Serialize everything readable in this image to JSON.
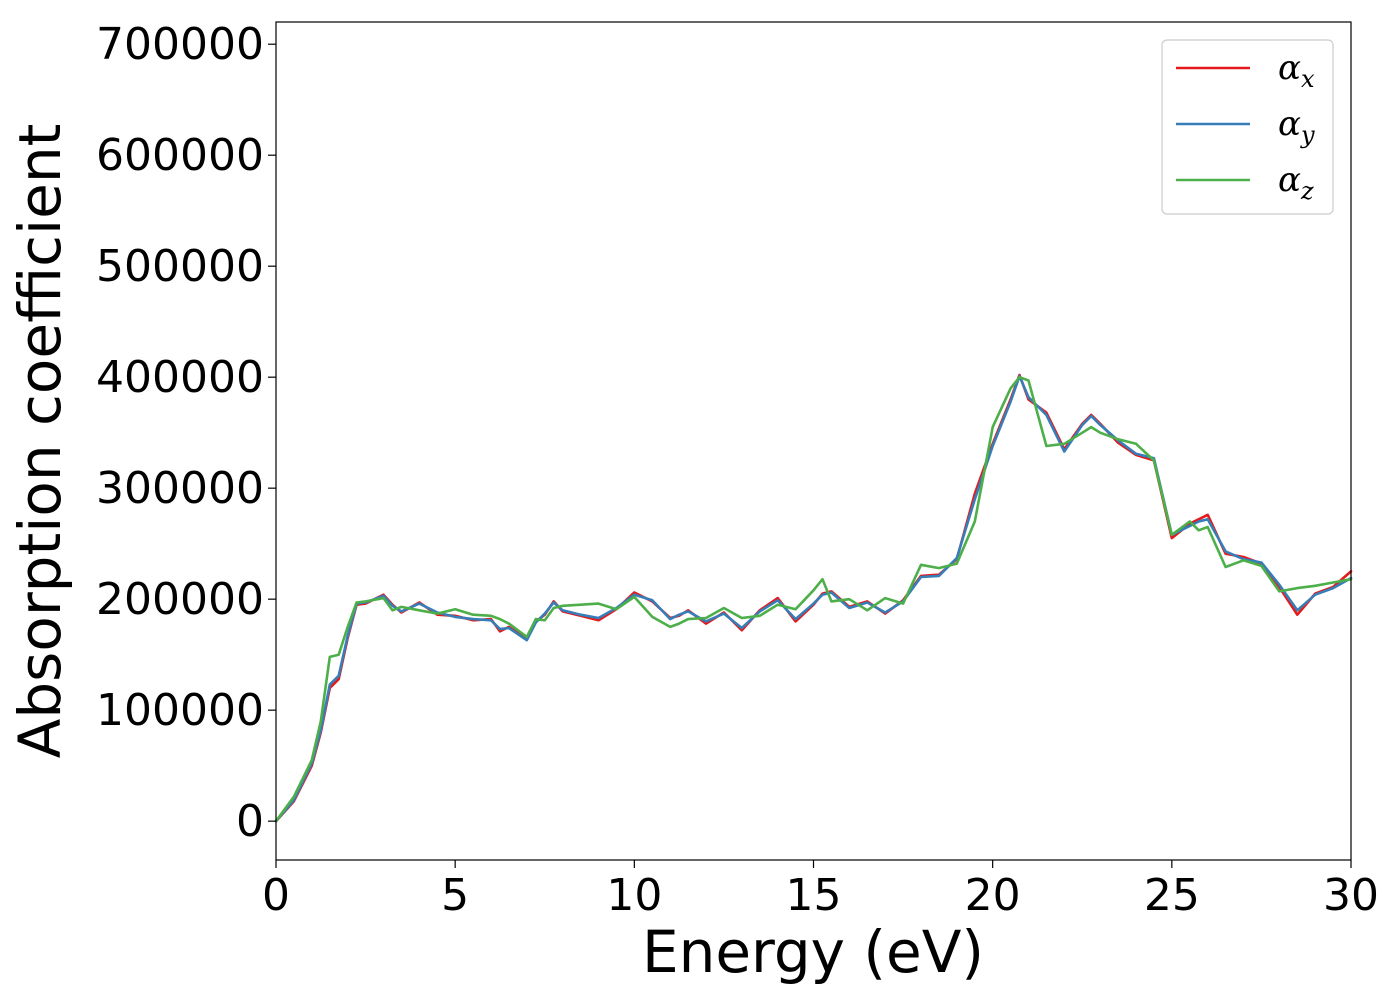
{
  "chart_data": {
    "type": "line",
    "xlabel": "Energy (eV)",
    "ylabel": "Absorption coefficient",
    "xlim": [
      0,
      30
    ],
    "ylim": [
      -35000,
      720000
    ],
    "xticks": [
      "0",
      "5",
      "10",
      "15",
      "20",
      "25",
      "30"
    ],
    "yticks": [
      "0",
      "100000",
      "200000",
      "300000",
      "400000",
      "500000",
      "600000",
      "700000"
    ],
    "grid": false,
    "legend_position": "top-right",
    "x": [
      0,
      0.5,
      1.0,
      1.25,
      1.5,
      1.75,
      2.0,
      2.25,
      2.5,
      3.0,
      3.25,
      3.5,
      4.0,
      4.5,
      5.0,
      5.5,
      6.0,
      6.25,
      6.5,
      7.0,
      7.25,
      7.5,
      7.75,
      8.0,
      8.5,
      9.0,
      9.5,
      10.0,
      10.5,
      11.0,
      11.25,
      11.5,
      12.0,
      12.5,
      13.0,
      13.5,
      14.0,
      14.5,
      15.0,
      15.25,
      15.5,
      16.0,
      16.5,
      17.0,
      17.5,
      18.0,
      18.5,
      19.0,
      19.5,
      20.0,
      20.5,
      20.75,
      21.0,
      21.5,
      22.0,
      22.5,
      22.75,
      23.0,
      23.5,
      24.0,
      24.5,
      25.0,
      25.5,
      25.75,
      26.0,
      26.5,
      27.0,
      27.5,
      28.0,
      28.5,
      29.0,
      29.5,
      30.0
    ],
    "series": [
      {
        "name": "α_x",
        "color": "#e41a1c",
        "values": [
          0,
          18000,
          50000,
          80000,
          120000,
          128000,
          165000,
          195000,
          196000,
          204000,
          195000,
          188000,
          197000,
          186000,
          185000,
          181000,
          182000,
          171000,
          175000,
          164000,
          180000,
          186000,
          198000,
          189000,
          185000,
          181000,
          191000,
          206000,
          198000,
          183000,
          185000,
          190000,
          178000,
          188000,
          172000,
          190000,
          201000,
          180000,
          195000,
          205000,
          207000,
          193000,
          198000,
          187000,
          199000,
          221000,
          222000,
          236000,
          295000,
          340000,
          380000,
          402000,
          380000,
          368000,
          335000,
          358000,
          366000,
          358000,
          341000,
          330000,
          325000,
          255000,
          268000,
          272000,
          276000,
          241000,
          238000,
          232000,
          211000,
          186000,
          205000,
          211000,
          225000
        ]
      },
      {
        "name": "α_y",
        "color": "#377eb8",
        "values": [
          0,
          19000,
          52000,
          82000,
          123000,
          131000,
          167000,
          196000,
          197000,
          203000,
          194000,
          189000,
          196000,
          188000,
          184000,
          182000,
          181000,
          173000,
          174000,
          163000,
          179000,
          187000,
          197000,
          190000,
          186000,
          183000,
          192000,
          204000,
          199000,
          182000,
          186000,
          189000,
          180000,
          187000,
          174000,
          189000,
          199000,
          182000,
          196000,
          204000,
          206000,
          192000,
          197000,
          188000,
          198000,
          220000,
          221000,
          237000,
          290000,
          338000,
          378000,
          401000,
          382000,
          366000,
          333000,
          357000,
          365000,
          357000,
          343000,
          331000,
          327000,
          258000,
          266000,
          270000,
          272000,
          243000,
          236000,
          233000,
          213000,
          190000,
          204000,
          210000,
          219000
        ]
      },
      {
        "name": "α_z",
        "color": "#4daf4a",
        "values": [
          0,
          22000,
          55000,
          90000,
          148000,
          150000,
          175000,
          197000,
          198000,
          201000,
          190000,
          193000,
          190000,
          187000,
          191000,
          186000,
          185000,
          182000,
          178000,
          166000,
          182000,
          181000,
          192000,
          194000,
          195000,
          196000,
          191000,
          202000,
          184000,
          175000,
          178000,
          182000,
          183000,
          192000,
          183000,
          185000,
          195000,
          191000,
          208000,
          218000,
          198000,
          200000,
          190000,
          201000,
          196000,
          231000,
          228000,
          232000,
          270000,
          355000,
          390000,
          400000,
          397000,
          338000,
          340000,
          350000,
          355000,
          350000,
          344000,
          340000,
          325000,
          258000,
          270000,
          262000,
          265000,
          229000,
          235000,
          230000,
          207000,
          210000,
          212000,
          215000,
          218000
        ]
      }
    ],
    "legend": [
      {
        "symbol": "α",
        "subscript": "x"
      },
      {
        "symbol": "α",
        "subscript": "y"
      },
      {
        "symbol": "α",
        "subscript": "z"
      }
    ]
  }
}
